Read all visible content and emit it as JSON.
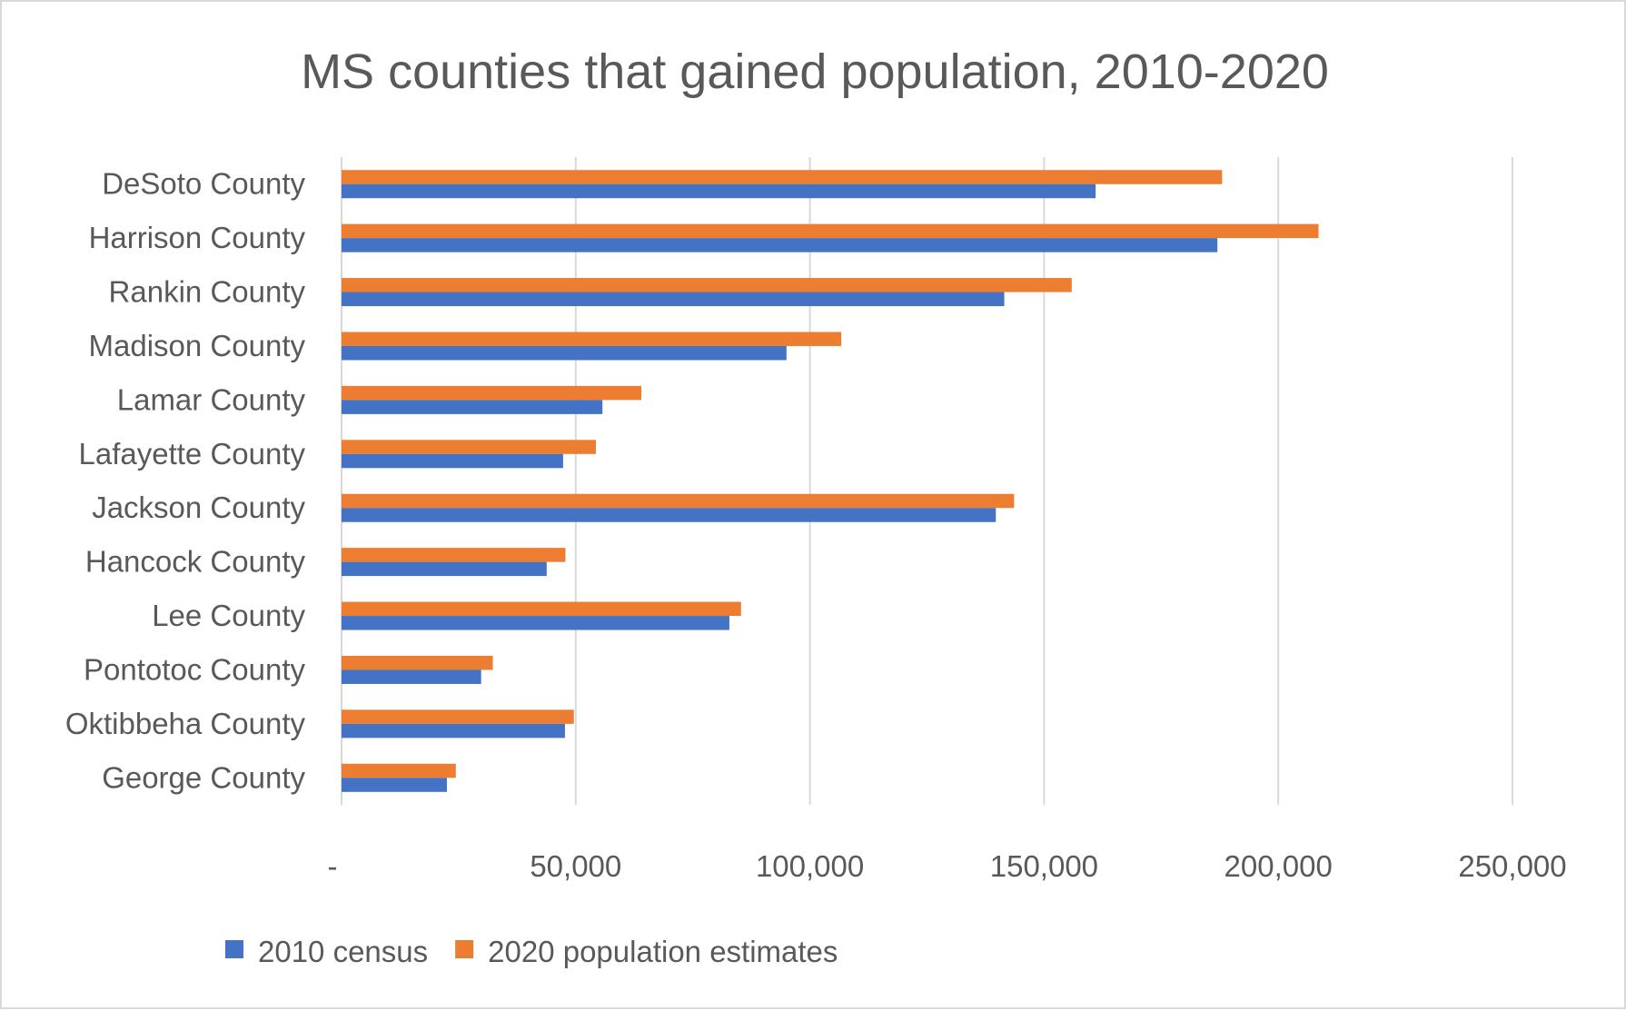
{
  "chart_data": {
    "type": "bar",
    "orientation": "horizontal",
    "title": "MS counties that gained population, 2010-2020",
    "xlabel": "",
    "ylabel": "",
    "categories": [
      "DeSoto County",
      "Harrison County",
      "Rankin County",
      "Madison County",
      "Lamar County",
      "Lafayette County",
      "Jackson County",
      "Hancock County",
      "Lee County",
      "Pontotoc County",
      "Oktibbeha County",
      "George County"
    ],
    "series": [
      {
        "name": "2010 census",
        "color": "#4472c4",
        "values": [
          161000,
          187000,
          141500,
          95000,
          55700,
          47300,
          139700,
          43800,
          82800,
          29800,
          47700,
          22500
        ]
      },
      {
        "name": "2020 population estimates",
        "color": "#ed7d31",
        "values": [
          188000,
          208600,
          155900,
          106700,
          64000,
          54300,
          143600,
          47800,
          85300,
          32300,
          49600,
          24400
        ]
      }
    ],
    "xlim": [
      0,
      250000
    ],
    "xticks": [
      0,
      50000,
      100000,
      150000,
      200000,
      250000
    ],
    "xtick_labels": [
      "-",
      "50,000",
      "100,000",
      "150,000",
      "200,000",
      "250,000"
    ],
    "grid": true,
    "legend": "bottom-left"
  }
}
